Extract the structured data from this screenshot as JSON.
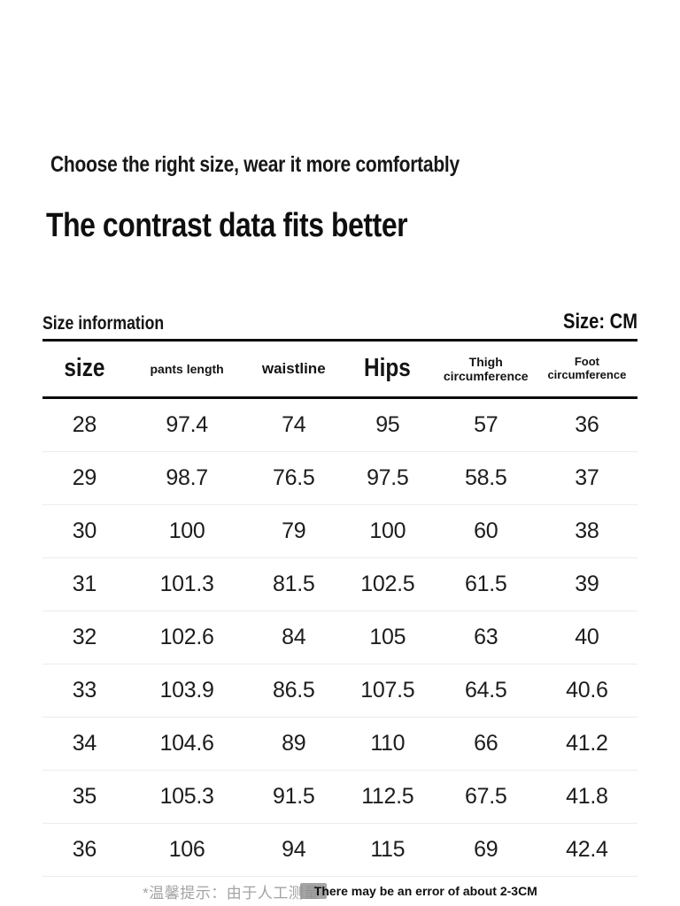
{
  "header": {
    "subtitle": "Choose the right size, wear it more comfortably",
    "title": "The contrast data fits better"
  },
  "size_section": {
    "label": "Size information",
    "unit": "Size: CM"
  },
  "table": {
    "columns": [
      "size",
      "pants length",
      "waistline",
      "Hips",
      "Thigh circumference",
      "Foot circumference"
    ],
    "rows": [
      [
        "28",
        "97.4",
        "74",
        "95",
        "57",
        "36"
      ],
      [
        "29",
        "98.7",
        "76.5",
        "97.5",
        "58.5",
        "37"
      ],
      [
        "30",
        "100",
        "79",
        "100",
        "60",
        "38"
      ],
      [
        "31",
        "101.3",
        "81.5",
        "102.5",
        "61.5",
        "39"
      ],
      [
        "32",
        "102.6",
        "84",
        "105",
        "63",
        "40"
      ],
      [
        "33",
        "103.9",
        "86.5",
        "107.5",
        "64.5",
        "40.6"
      ],
      [
        "34",
        "104.6",
        "89",
        "110",
        "66",
        "41.2"
      ],
      [
        "35",
        "105.3",
        "91.5",
        "112.5",
        "67.5",
        "41.8"
      ],
      [
        "36",
        "106",
        "94",
        "115",
        "69",
        "42.4"
      ]
    ]
  },
  "footnote": {
    "tip_cn": "*温馨提示：由于人工测量",
    "note_en": "There may be an error of about 2-3CM"
  },
  "colors": {
    "text": "#1d1d1d",
    "header_border": "#0a0a0a",
    "row_divider": "#ececec",
    "muted_gray": "#a3a3a3"
  }
}
